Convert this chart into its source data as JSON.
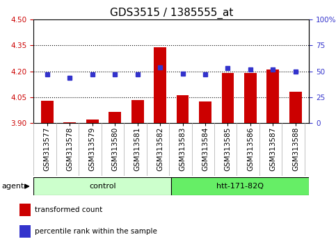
{
  "title": "GDS3515 / 1385555_at",
  "categories": [
    "GSM313577",
    "GSM313578",
    "GSM313579",
    "GSM313580",
    "GSM313581",
    "GSM313582",
    "GSM313583",
    "GSM313584",
    "GSM313585",
    "GSM313586",
    "GSM313587",
    "GSM313588"
  ],
  "bar_values": [
    4.03,
    3.905,
    3.92,
    3.965,
    4.035,
    4.34,
    4.06,
    4.025,
    4.19,
    4.19,
    4.21,
    4.08
  ],
  "dot_values": [
    47,
    44,
    47,
    47,
    47,
    54,
    48,
    47,
    53,
    52,
    52,
    50
  ],
  "ylim": [
    3.9,
    4.5
  ],
  "yticks_left": [
    3.9,
    4.05,
    4.2,
    4.35,
    4.5
  ],
  "yticks_right": [
    0,
    25,
    50,
    75,
    100
  ],
  "y_right_labels": [
    "0",
    "25",
    "50",
    "75",
    "100%"
  ],
  "bar_color": "#cc0000",
  "dot_color": "#3333cc",
  "bar_bottom": 3.9,
  "agent_groups": [
    {
      "label": "control",
      "start": 0,
      "end": 6,
      "color": "#ccffcc"
    },
    {
      "label": "htt-171-82Q",
      "start": 6,
      "end": 12,
      "color": "#66ee66"
    }
  ],
  "agent_label": "agent",
  "legend_items": [
    {
      "color": "#cc0000",
      "label": "transformed count"
    },
    {
      "color": "#3333cc",
      "label": "percentile rank within the sample"
    }
  ],
  "grid_yticks": [
    4.05,
    4.2,
    4.35
  ],
  "title_fontsize": 11,
  "tick_fontsize": 7.5,
  "label_fontsize": 8,
  "bg_color": "#ffffff",
  "plot_bg": "#ffffff",
  "tick_color_left": "#cc0000",
  "tick_color_right": "#3333cc",
  "xticklabel_bg": "#d8d8d8"
}
